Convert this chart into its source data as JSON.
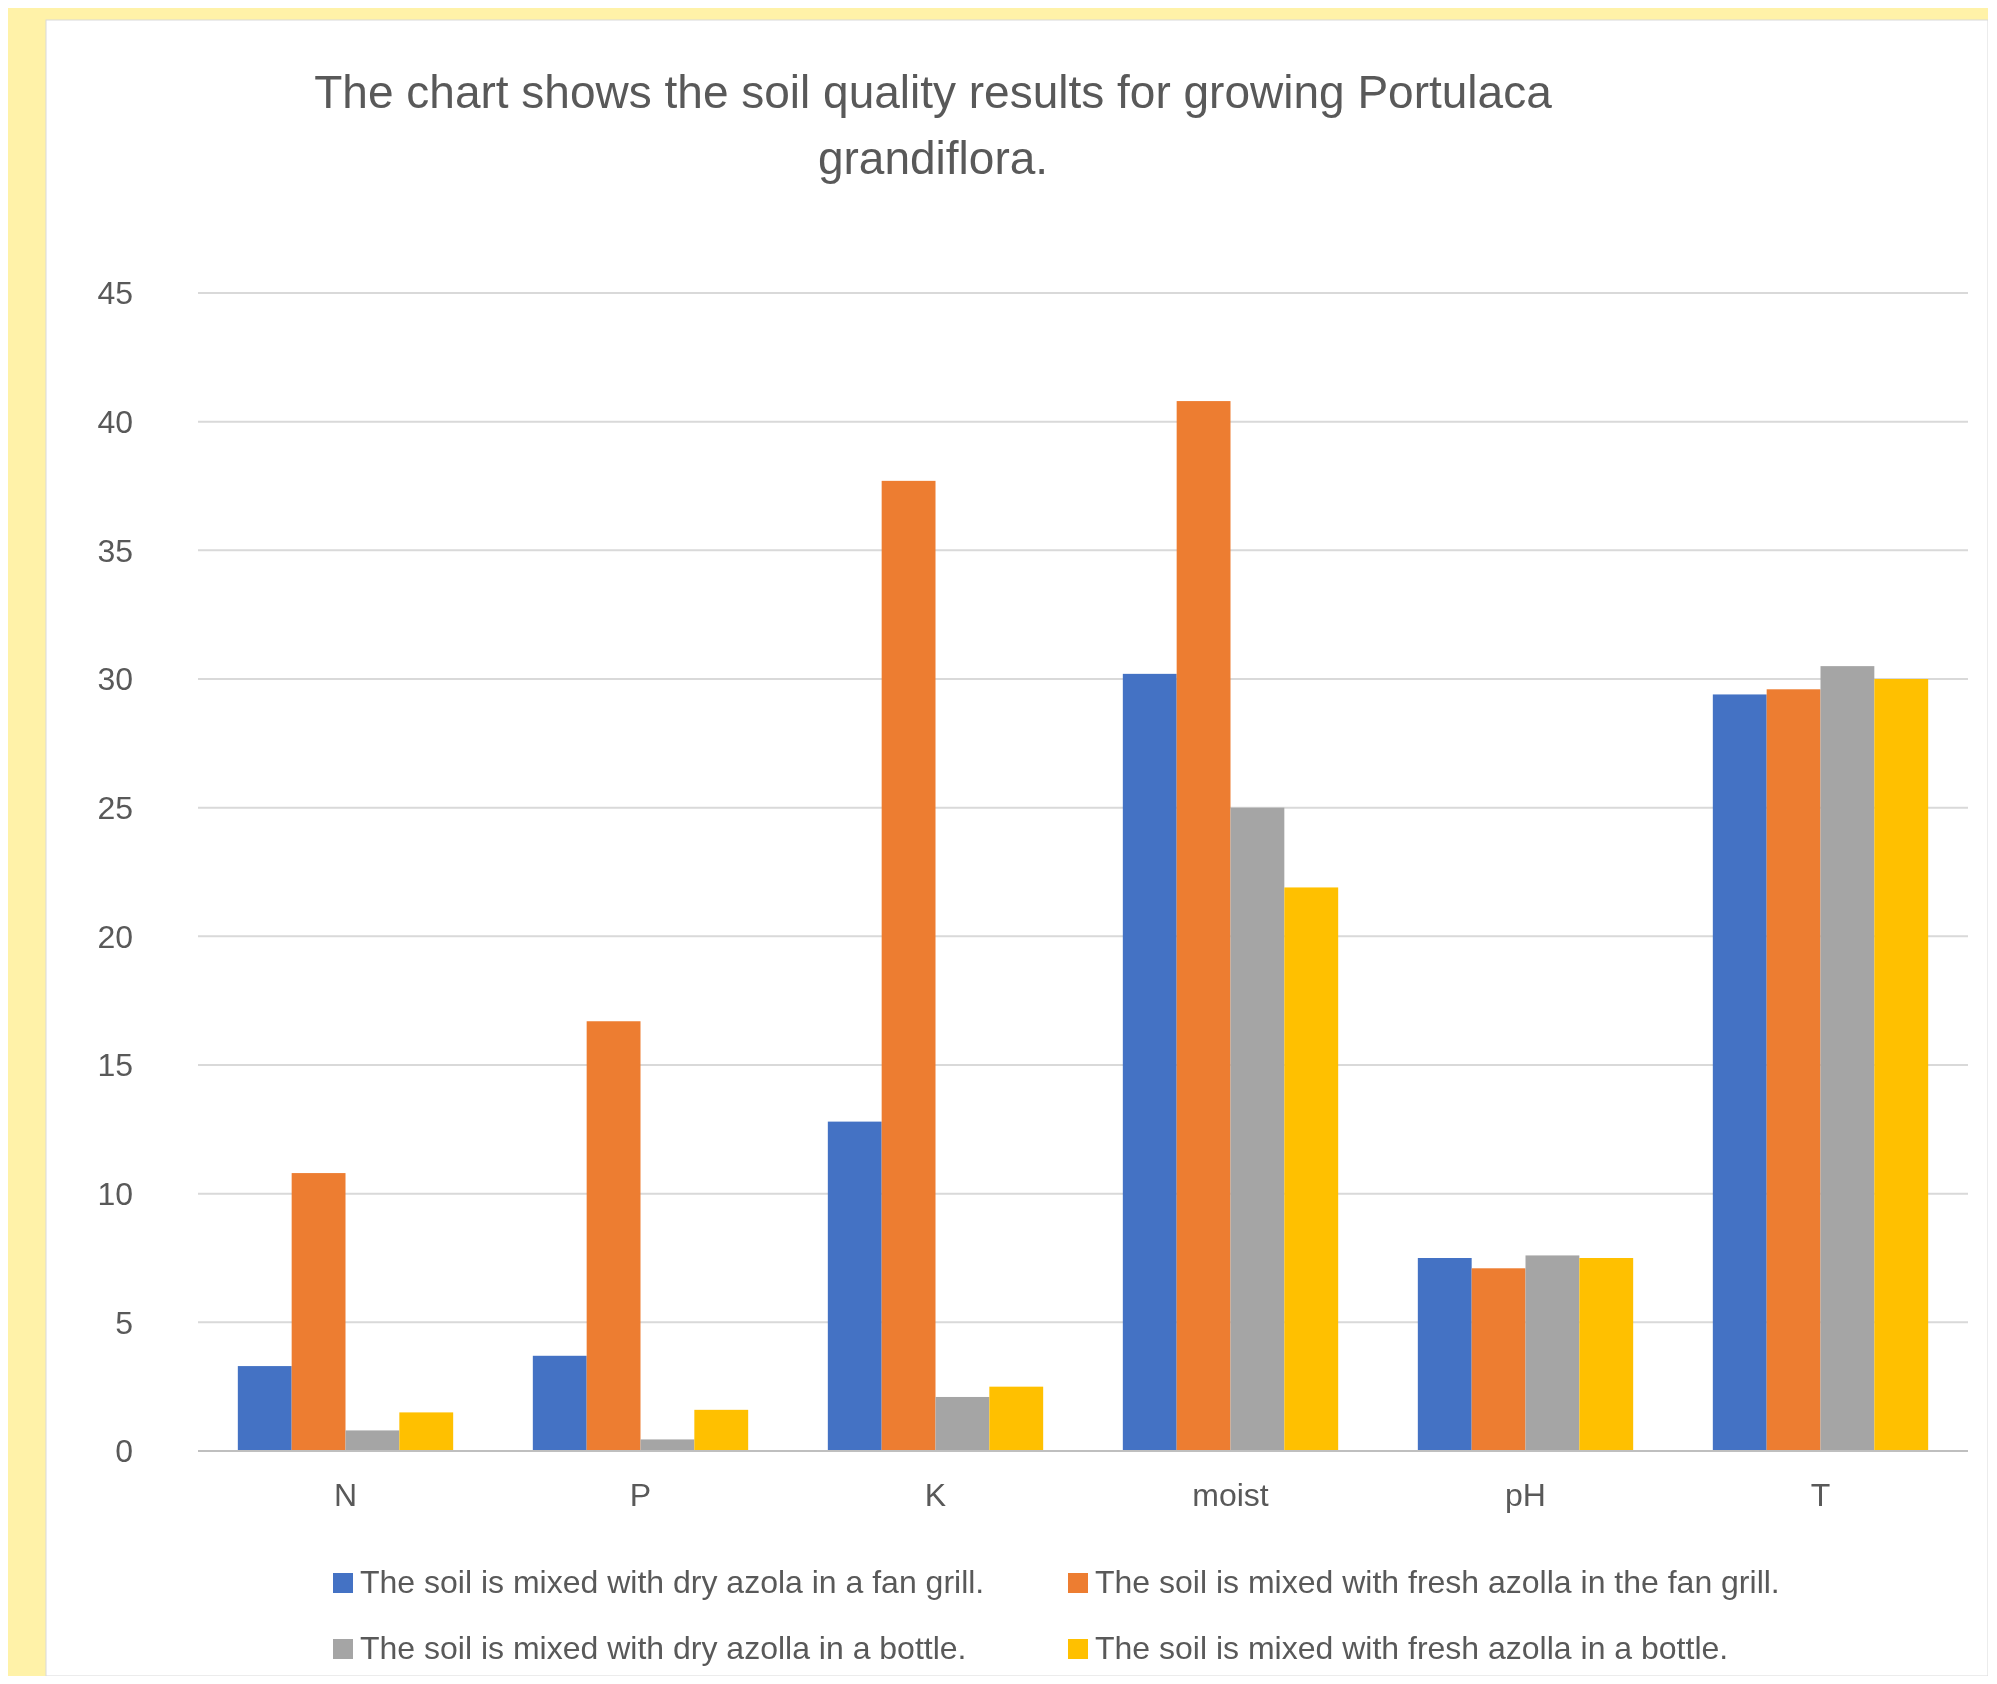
{
  "chart_data": {
    "type": "bar",
    "title": "The chart shows the soil quality results for growing Portulaca grandiflora.",
    "categories": [
      "N",
      "P",
      "K",
      "moist",
      "pH",
      "T"
    ],
    "series": [
      {
        "name": "The soil is mixed with dry azola in a fan grill.",
        "color": "#4472c4",
        "values": [
          3.3,
          3.7,
          12.8,
          30.2,
          7.5,
          29.4
        ]
      },
      {
        "name": "The soil is mixed with fresh azolla in the fan grill.",
        "color": "#ed7d31",
        "values": [
          10.8,
          16.7,
          37.7,
          40.8,
          7.1,
          29.6
        ]
      },
      {
        "name": "The soil is mixed with dry azolla in a bottle.",
        "color": "#a5a5a5",
        "values": [
          0.8,
          0.45,
          2.1,
          25,
          7.6,
          30.5
        ]
      },
      {
        "name": "The soil is mixed with fresh azolla in a bottle.",
        "color": "#ffc000",
        "values": [
          1.5,
          1.6,
          2.5,
          21.9,
          7.5,
          30
        ]
      }
    ],
    "ylim": [
      0,
      45
    ],
    "yticks": [
      0,
      5,
      10,
      15,
      20,
      25,
      30,
      35,
      40,
      45
    ],
    "grid": "y",
    "legend": "bottom"
  }
}
